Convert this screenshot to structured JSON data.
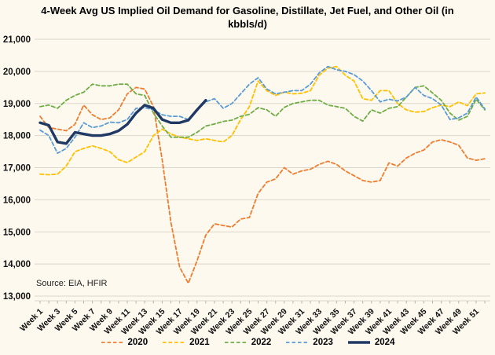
{
  "title": "4-Week Avg US Implied Oil Demand for Gasoline, Distillate, Jet Fuel, and Other Oil (in kbbls/d)",
  "source_note": "Source: EIA, HFIR",
  "chart_data": {
    "type": "line",
    "title": "4-Week Avg US Implied Oil Demand for Gasoline, Distillate, Jet Fuel, and Other Oil (in kbbls/d)",
    "xlabel": "",
    "ylabel": "",
    "ylim": [
      13000,
      21000
    ],
    "y_ticks": [
      13000,
      14000,
      15000,
      16000,
      17000,
      18000,
      19000,
      20000,
      21000
    ],
    "x_weeks": 52,
    "x_tick_labels": [
      "Week 1",
      "Week 3",
      "Week 5",
      "Week 7",
      "Week 9",
      "Week 11",
      "Week 13",
      "Week 15",
      "Week 17",
      "Week 19",
      "Week 21",
      "Week 23",
      "Week 25",
      "Week 27",
      "Week 29",
      "Week 31",
      "Week 33",
      "Week 35",
      "Week 37",
      "Week 39",
      "Week 41",
      "Week 43",
      "Week 45",
      "Week 47",
      "Week 49",
      "Week 51"
    ],
    "grid": true,
    "legend_position": "bottom",
    "colors": {
      "background": "#fdf9ee",
      "gridline": "#dbd7cb",
      "axis_text": "#111111"
    },
    "series": [
      {
        "name": "2020",
        "color": "#ED7D31",
        "style": "dashed",
        "values": [
          18600,
          18250,
          18200,
          18150,
          18350,
          18950,
          18650,
          18500,
          18550,
          18800,
          19300,
          19500,
          19450,
          18900,
          17250,
          15300,
          13900,
          13400,
          14100,
          14900,
          15250,
          15200,
          15150,
          15400,
          15450,
          16200,
          16550,
          16650,
          17000,
          16800,
          16900,
          16950,
          17100,
          17200,
          17100,
          16900,
          16750,
          16600,
          16550,
          16600,
          17150,
          17050,
          17300,
          17450,
          17550,
          17800,
          17870,
          17800,
          17700,
          17300,
          17230,
          17280
        ]
      },
      {
        "name": "2021",
        "color": "#FFC000",
        "style": "dashed",
        "values": [
          16800,
          16780,
          16800,
          17050,
          17500,
          17600,
          17680,
          17600,
          17500,
          17250,
          17160,
          17330,
          17500,
          18000,
          18200,
          18050,
          17950,
          17900,
          17850,
          17900,
          17850,
          17800,
          18000,
          18500,
          18900,
          19700,
          19400,
          19250,
          19350,
          19300,
          19320,
          19400,
          19880,
          20100,
          20150,
          19880,
          19700,
          19150,
          19100,
          19400,
          19400,
          19000,
          18800,
          18730,
          18750,
          18870,
          18950,
          18900,
          19050,
          18930,
          19300,
          19330
        ]
      },
      {
        "name": "2022",
        "color": "#70AD47",
        "style": "dashed",
        "values": [
          18900,
          18950,
          18850,
          19100,
          19250,
          19350,
          19600,
          19550,
          19550,
          19600,
          19600,
          19300,
          19250,
          18700,
          18300,
          17950,
          17950,
          17950,
          18100,
          18300,
          18360,
          18440,
          18480,
          18600,
          18660,
          18870,
          18800,
          18600,
          18880,
          19000,
          19050,
          19100,
          19100,
          18950,
          18900,
          18850,
          18600,
          18450,
          18800,
          18700,
          18850,
          18900,
          19200,
          19500,
          19550,
          19330,
          19100,
          18700,
          18480,
          18600,
          19130,
          18800
        ]
      },
      {
        "name": "2023",
        "color": "#5B9BD5",
        "style": "dashed",
        "values": [
          18170,
          18000,
          17450,
          17600,
          17950,
          18400,
          18250,
          18300,
          18420,
          18400,
          18500,
          18850,
          18870,
          18800,
          18650,
          18600,
          18600,
          18500,
          18800,
          19050,
          19150,
          18850,
          19000,
          19300,
          19600,
          19800,
          19450,
          19300,
          19350,
          19400,
          19400,
          19600,
          19950,
          20150,
          20050,
          20000,
          19900,
          19700,
          19400,
          19050,
          19130,
          19080,
          19200,
          19500,
          19250,
          19150,
          18950,
          18500,
          18550,
          18700,
          19200,
          18830
        ]
      },
      {
        "name": "2024",
        "color": "#1F3864",
        "style": "solid-bold",
        "values": [
          18400,
          18320,
          17800,
          17750,
          18100,
          18050,
          18000,
          18000,
          18050,
          18150,
          18350,
          18700,
          18950,
          18850,
          18500,
          18400,
          18400,
          18480,
          18800,
          19100
        ]
      }
    ]
  }
}
